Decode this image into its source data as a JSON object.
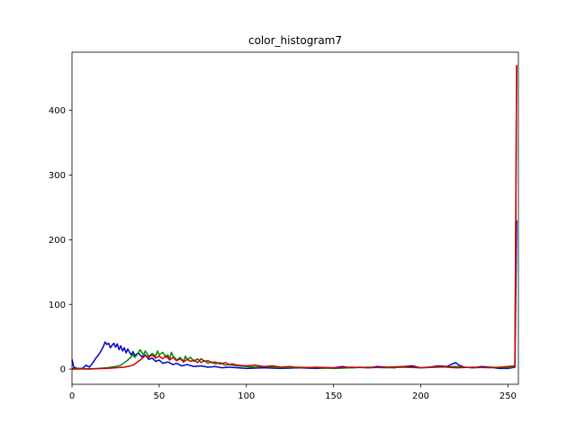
{
  "chart_data": {
    "type": "line",
    "title": "color_histogram7",
    "xlabel": "",
    "ylabel": "",
    "xlim": [
      0,
      256
    ],
    "ylim": [
      -23.5,
      490
    ],
    "xticks": [
      0,
      50,
      100,
      150,
      200,
      250
    ],
    "yticks": [
      0,
      100,
      200,
      300,
      400
    ],
    "grid": false,
    "legend": "none",
    "series": [
      {
        "color": "#0000cc",
        "points": [
          [
            0,
            15
          ],
          [
            1,
            3
          ],
          [
            3,
            1
          ],
          [
            6,
            1
          ],
          [
            8,
            6
          ],
          [
            10,
            3
          ],
          [
            12,
            10
          ],
          [
            14,
            18
          ],
          [
            16,
            25
          ],
          [
            17,
            30
          ],
          [
            18,
            35
          ],
          [
            19,
            42
          ],
          [
            20,
            38
          ],
          [
            21,
            40
          ],
          [
            22,
            33
          ],
          [
            23,
            37
          ],
          [
            24,
            40
          ],
          [
            25,
            34
          ],
          [
            26,
            39
          ],
          [
            27,
            30
          ],
          [
            28,
            36
          ],
          [
            29,
            28
          ],
          [
            30,
            33
          ],
          [
            31,
            25
          ],
          [
            32,
            31
          ],
          [
            33,
            26
          ],
          [
            34,
            22
          ],
          [
            35,
            27
          ],
          [
            36,
            21
          ],
          [
            38,
            25
          ],
          [
            40,
            19
          ],
          [
            42,
            22
          ],
          [
            44,
            15
          ],
          [
            46,
            17
          ],
          [
            48,
            12
          ],
          [
            50,
            14
          ],
          [
            52,
            9
          ],
          [
            55,
            11
          ],
          [
            58,
            7
          ],
          [
            60,
            9
          ],
          [
            63,
            5
          ],
          [
            66,
            7
          ],
          [
            70,
            4
          ],
          [
            74,
            5
          ],
          [
            78,
            3
          ],
          [
            82,
            4
          ],
          [
            86,
            2
          ],
          [
            90,
            3
          ],
          [
            95,
            2
          ],
          [
            100,
            1
          ],
          [
            110,
            2
          ],
          [
            120,
            1
          ],
          [
            130,
            2
          ],
          [
            140,
            1
          ],
          [
            150,
            2
          ],
          [
            155,
            4
          ],
          [
            160,
            2
          ],
          [
            165,
            3
          ],
          [
            170,
            2
          ],
          [
            175,
            4
          ],
          [
            180,
            3
          ],
          [
            185,
            2
          ],
          [
            190,
            4
          ],
          [
            195,
            5
          ],
          [
            200,
            2
          ],
          [
            205,
            3
          ],
          [
            210,
            5
          ],
          [
            215,
            4
          ],
          [
            218,
            8
          ],
          [
            220,
            10
          ],
          [
            222,
            6
          ],
          [
            225,
            3
          ],
          [
            230,
            2
          ],
          [
            235,
            4
          ],
          [
            240,
            3
          ],
          [
            245,
            1
          ],
          [
            250,
            1
          ],
          [
            254,
            3
          ],
          [
            255,
            230
          ]
        ]
      },
      {
        "color": "#008800",
        "points": [
          [
            0,
            1
          ],
          [
            10,
            0
          ],
          [
            15,
            1
          ],
          [
            20,
            2
          ],
          [
            25,
            4
          ],
          [
            28,
            6
          ],
          [
            30,
            10
          ],
          [
            32,
            14
          ],
          [
            34,
            19
          ],
          [
            35,
            23
          ],
          [
            36,
            18
          ],
          [
            38,
            25
          ],
          [
            39,
            30
          ],
          [
            40,
            26
          ],
          [
            41,
            22
          ],
          [
            42,
            28
          ],
          [
            44,
            20
          ],
          [
            46,
            24
          ],
          [
            48,
            20
          ],
          [
            49,
            28
          ],
          [
            50,
            22
          ],
          [
            52,
            26
          ],
          [
            54,
            18
          ],
          [
            55,
            22
          ],
          [
            56,
            15
          ],
          [
            57,
            26
          ],
          [
            58,
            20
          ],
          [
            60,
            14
          ],
          [
            62,
            18
          ],
          [
            64,
            12
          ],
          [
            65,
            20
          ],
          [
            66,
            15
          ],
          [
            68,
            18
          ],
          [
            70,
            12
          ],
          [
            72,
            16
          ],
          [
            74,
            10
          ],
          [
            76,
            13
          ],
          [
            78,
            9
          ],
          [
            80,
            11
          ],
          [
            82,
            8
          ],
          [
            85,
            10
          ],
          [
            88,
            6
          ],
          [
            90,
            7
          ],
          [
            95,
            5
          ],
          [
            100,
            4
          ],
          [
            105,
            3
          ],
          [
            110,
            4
          ],
          [
            120,
            2
          ],
          [
            130,
            3
          ],
          [
            140,
            2
          ],
          [
            150,
            1
          ],
          [
            160,
            2
          ],
          [
            170,
            3
          ],
          [
            180,
            2
          ],
          [
            190,
            3
          ],
          [
            200,
            2
          ],
          [
            210,
            3
          ],
          [
            220,
            4
          ],
          [
            230,
            2
          ],
          [
            240,
            3
          ],
          [
            250,
            2
          ],
          [
            254,
            4
          ],
          [
            255,
            470
          ]
        ]
      },
      {
        "color": "#cc0000",
        "points": [
          [
            0,
            0
          ],
          [
            20,
            1
          ],
          [
            25,
            2
          ],
          [
            30,
            3
          ],
          [
            35,
            6
          ],
          [
            38,
            12
          ],
          [
            40,
            16
          ],
          [
            42,
            21
          ],
          [
            44,
            18
          ],
          [
            46,
            22
          ],
          [
            48,
            17
          ],
          [
            50,
            20
          ],
          [
            52,
            16
          ],
          [
            54,
            21
          ],
          [
            56,
            14
          ],
          [
            58,
            18
          ],
          [
            60,
            13
          ],
          [
            62,
            16
          ],
          [
            64,
            11
          ],
          [
            66,
            15
          ],
          [
            68,
            12
          ],
          [
            70,
            14
          ],
          [
            72,
            10
          ],
          [
            74,
            16
          ],
          [
            76,
            12
          ],
          [
            78,
            13
          ],
          [
            80,
            10
          ],
          [
            82,
            11
          ],
          [
            85,
            8
          ],
          [
            88,
            10
          ],
          [
            90,
            7
          ],
          [
            92,
            8
          ],
          [
            95,
            6
          ],
          [
            100,
            5
          ],
          [
            105,
            6
          ],
          [
            110,
            4
          ],
          [
            115,
            5
          ],
          [
            120,
            3
          ],
          [
            125,
            4
          ],
          [
            130,
            2
          ],
          [
            140,
            3
          ],
          [
            150,
            2
          ],
          [
            160,
            3
          ],
          [
            170,
            2
          ],
          [
            180,
            3
          ],
          [
            190,
            4
          ],
          [
            200,
            2
          ],
          [
            210,
            4
          ],
          [
            220,
            2
          ],
          [
            230,
            3
          ],
          [
            240,
            2
          ],
          [
            245,
            3
          ],
          [
            250,
            4
          ],
          [
            254,
            5
          ],
          [
            255,
            470
          ]
        ]
      }
    ]
  }
}
